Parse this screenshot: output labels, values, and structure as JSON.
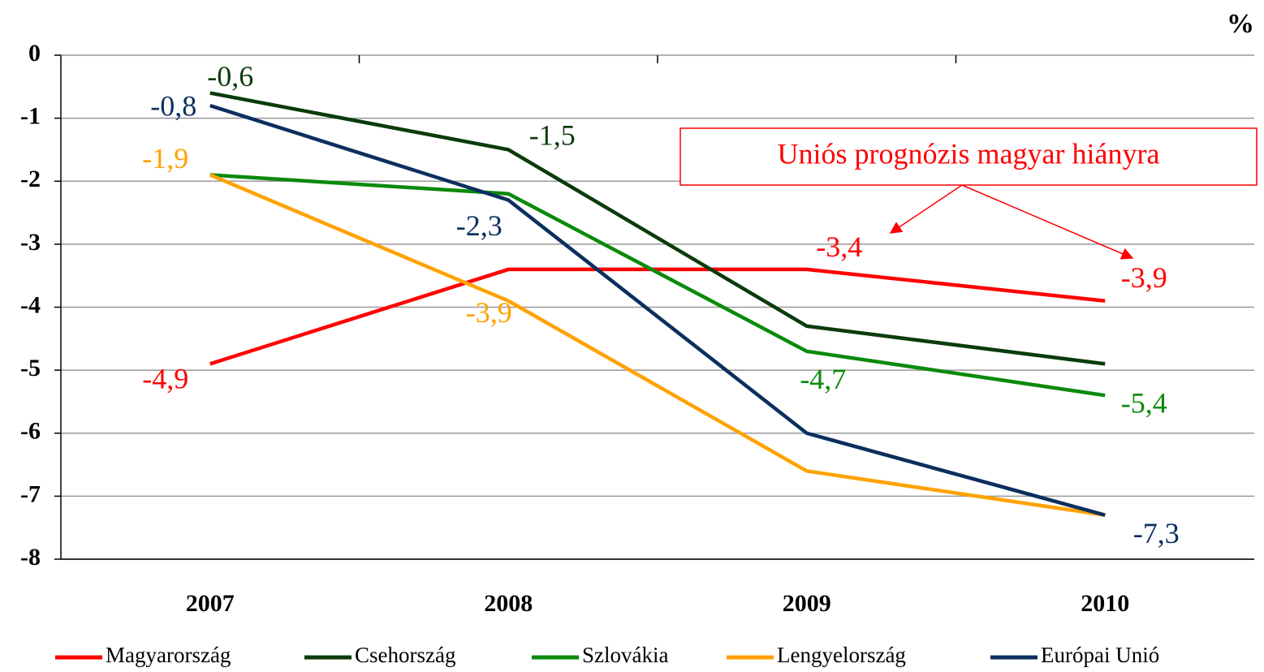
{
  "chart_data": {
    "type": "line",
    "y_label": "%",
    "categories": [
      "2007",
      "2008",
      "2009",
      "2010"
    ],
    "series": [
      {
        "name": "Magyarország",
        "color": "#ff0000",
        "values": [
          -4.9,
          -3.4,
          -3.4,
          -3.9
        ],
        "value_labels": [
          "-4,9",
          null,
          "-3,4",
          "-3,9"
        ]
      },
      {
        "name": "Csehország",
        "color": "#0b3b0b",
        "values": [
          -0.6,
          -1.5,
          -4.3,
          -4.9
        ],
        "value_labels": [
          "-0,6",
          "-1,5",
          null,
          null
        ]
      },
      {
        "name": "Szlovákia",
        "color": "#0b8a0b",
        "values": [
          -1.9,
          -2.2,
          -4.7,
          -5.4
        ],
        "value_labels": [
          null,
          null,
          "-4,7",
          "-5,4"
        ]
      },
      {
        "name": "Lengyelország",
        "color": "#ffa200",
        "values": [
          -1.9,
          -3.9,
          -6.6,
          -7.3
        ],
        "value_labels": [
          "-1,9",
          "-3,9",
          null,
          null
        ]
      },
      {
        "name": "Európai Unió",
        "color": "#0b2f5e",
        "values": [
          -0.8,
          -2.3,
          -6.0,
          -7.3
        ],
        "value_labels": [
          "-0,8",
          "-2,3",
          null,
          "-7,3"
        ]
      }
    ],
    "annotation": "Uniós prognózis magyar hiányra",
    "ylim": [
      -8,
      0
    ],
    "yticks": [
      0,
      -1,
      -2,
      -3,
      -4,
      -5,
      -6,
      -7,
      -8
    ],
    "grid": true
  }
}
